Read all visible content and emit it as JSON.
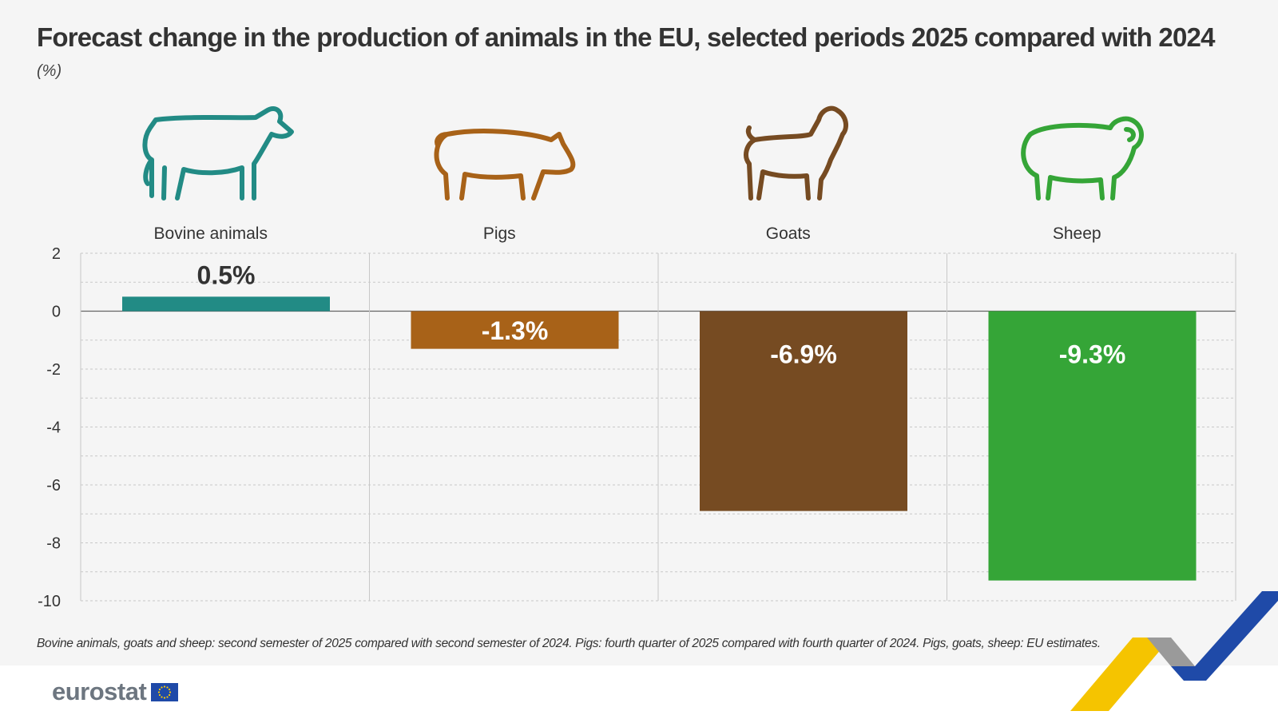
{
  "title": "Forecast change in the production of animals in the EU, selected periods 2025 compared with 2024",
  "unit_label": "(%)",
  "footnote": "Bovine animals, goats and sheep: second semester of 2025 compared with second semester of 2024. Pigs: fourth quarter of 2025 compared with fourth quarter of 2024. Pigs, goats, sheep: EU estimates.",
  "brand": "eurostat",
  "colors": {
    "bovine": "#228b85",
    "pigs": "#a86218",
    "goats": "#764b22",
    "sheep": "#35a537",
    "text": "#333333",
    "panel": "#f5f5f5"
  },
  "chart_data": {
    "type": "bar",
    "categories": [
      "Bovine animals",
      "Pigs",
      "Goats",
      "Sheep"
    ],
    "values": [
      0.5,
      -1.3,
      -6.9,
      -9.3
    ],
    "data_labels": [
      "0.5%",
      "-1.3%",
      "-6.9%",
      "-9.3%"
    ],
    "icons": [
      "cow-icon",
      "pig-icon",
      "goat-icon",
      "sheep-icon"
    ],
    "ylim": [
      -10,
      2
    ],
    "yticks": [
      2,
      0,
      -2,
      -4,
      -6,
      -8,
      -10
    ],
    "grid": true
  }
}
